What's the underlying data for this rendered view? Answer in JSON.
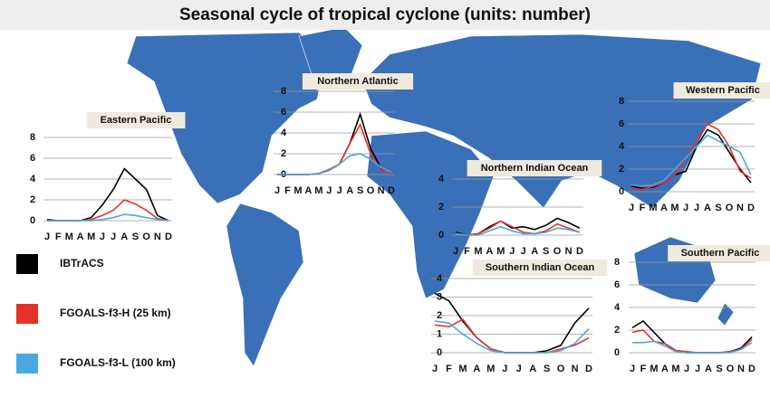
{
  "title": "Seasonal cycle of tropical cyclone (units: number)",
  "chart_data": [
    {
      "type": "line",
      "title": "Eastern Pacific",
      "categories": [
        "J",
        "F",
        "M",
        "A",
        "M",
        "J",
        "J",
        "A",
        "S",
        "O",
        "N",
        "D"
      ],
      "ylim": [
        0,
        8
      ],
      "yticks": [
        0,
        2,
        4,
        6,
        8
      ],
      "grid": true,
      "series": [
        {
          "name": "IBTrACS",
          "color": "#000000",
          "values": [
            0.1,
            0,
            0,
            0,
            0.3,
            1.5,
            3,
            5,
            4,
            3,
            0.5,
            0
          ]
        },
        {
          "name": "FGOALS-f3-H (25 km)",
          "color": "#e8302a",
          "values": [
            0,
            0,
            0,
            0,
            0.1,
            0.5,
            1,
            2,
            1.6,
            1,
            0.2,
            0
          ]
        },
        {
          "name": "FGOALS-f3-L (100 km)",
          "color": "#4aa8e0",
          "values": [
            0,
            0,
            0,
            0,
            0,
            0.1,
            0.3,
            0.6,
            0.5,
            0.3,
            0.1,
            0
          ]
        }
      ]
    },
    {
      "type": "line",
      "title": "Northern Atlantic",
      "categories": [
        "J",
        "F",
        "M",
        "A",
        "M",
        "J",
        "J",
        "A",
        "S",
        "O",
        "N",
        "D"
      ],
      "ylim": [
        0,
        8
      ],
      "yticks": [
        0,
        2,
        4,
        6,
        8
      ],
      "grid": true,
      "series": [
        {
          "name": "IBTrACS",
          "color": "#000000",
          "values": [
            0,
            0,
            0,
            0,
            0.1,
            0.5,
            1,
            3,
            5.8,
            2.5,
            0.6,
            0.1
          ]
        },
        {
          "name": "FGOALS-f3-H (25 km)",
          "color": "#e8302a",
          "values": [
            0,
            0,
            0,
            0,
            0.1,
            0.4,
            1,
            3,
            4.8,
            2,
            0.5,
            0.1
          ]
        },
        {
          "name": "FGOALS-f3-L (100 km)",
          "color": "#4aa8e0",
          "values": [
            0,
            0,
            0,
            0,
            0.1,
            0.5,
            1,
            1.8,
            2,
            1.5,
            0.7,
            0.2
          ]
        }
      ]
    },
    {
      "type": "line",
      "title": "Western Pacific",
      "categories": [
        "J",
        "F",
        "M",
        "A",
        "M",
        "J",
        "J",
        "A",
        "S",
        "O",
        "N",
        "D"
      ],
      "ylim": [
        0,
        8
      ],
      "yticks": [
        0,
        2,
        4,
        6,
        8
      ],
      "grid": true,
      "series": [
        {
          "name": "IBTrACS",
          "color": "#000000",
          "values": [
            0.5,
            0.3,
            0.4,
            0.8,
            1.5,
            1.8,
            4,
            5.5,
            5,
            3.5,
            2,
            0.8
          ]
        },
        {
          "name": "FGOALS-f3-H (25 km)",
          "color": "#e8302a",
          "values": [
            0.3,
            0.2,
            0.5,
            0.8,
            1.5,
            3,
            4.5,
            6,
            5.5,
            4,
            1.8,
            1.2
          ]
        },
        {
          "name": "FGOALS-f3-L (100 km)",
          "color": "#4aa8e0",
          "values": [
            0.6,
            0.5,
            0.6,
            1,
            2,
            3,
            4,
            5,
            4.5,
            4,
            3.5,
            1.5
          ]
        }
      ]
    },
    {
      "type": "line",
      "title": "Northern Indian Ocean",
      "categories": [
        "J",
        "F",
        "M",
        "A",
        "M",
        "J",
        "J",
        "A",
        "S",
        "O",
        "N",
        "D"
      ],
      "ylim": [
        0,
        4
      ],
      "yticks": [
        0,
        2,
        4
      ],
      "grid": true,
      "series": [
        {
          "name": "IBTrACS",
          "color": "#000000",
          "values": [
            0.2,
            0,
            0.1,
            0.6,
            1,
            0.5,
            0.6,
            0.4,
            0.7,
            1.2,
            0.9,
            0.5
          ]
        },
        {
          "name": "FGOALS-f3-H (25 km)",
          "color": "#e8302a",
          "values": [
            0.1,
            0,
            0.1,
            0.5,
            1,
            0.6,
            0.2,
            0.1,
            0.3,
            0.8,
            0.5,
            0.2
          ]
        },
        {
          "name": "FGOALS-f3-L (100 km)",
          "color": "#4aa8e0",
          "values": [
            0.1,
            0,
            0,
            0.3,
            0.6,
            0.3,
            0.1,
            0.1,
            0.2,
            0.5,
            0.4,
            0.2
          ]
        }
      ]
    },
    {
      "type": "line",
      "title": "Southern Indian Ocean",
      "categories": [
        "J",
        "F",
        "M",
        "A",
        "M",
        "J",
        "J",
        "A",
        "S",
        "O",
        "N",
        "D"
      ],
      "ylim": [
        0,
        4
      ],
      "yticks": [
        0,
        1,
        2,
        3,
        4
      ],
      "grid": true,
      "series": [
        {
          "name": "IBTrACS",
          "color": "#000000",
          "values": [
            3.2,
            2.8,
            1.7,
            0.8,
            0.2,
            0,
            0,
            0,
            0.1,
            0.4,
            1.6,
            2.4
          ]
        },
        {
          "name": "FGOALS-f3-H (25 km)",
          "color": "#e8302a",
          "values": [
            1.5,
            1.4,
            1.8,
            0.8,
            0.2,
            0,
            0,
            0,
            0,
            0.2,
            0.4,
            0.8
          ]
        },
        {
          "name": "FGOALS-f3-L (100 km)",
          "color": "#4aa8e0",
          "values": [
            1.7,
            1.6,
            1,
            0.5,
            0.1,
            0,
            0,
            0,
            0,
            0.1,
            0.5,
            1.3
          ]
        }
      ]
    },
    {
      "type": "line",
      "title": "Southern Pacific",
      "categories": [
        "J",
        "F",
        "M",
        "A",
        "M",
        "J",
        "J",
        "A",
        "S",
        "O",
        "N",
        "D"
      ],
      "ylim": [
        0,
        8
      ],
      "yticks": [
        0,
        2,
        4,
        6,
        8
      ],
      "grid": true,
      "series": [
        {
          "name": "IBTrACS",
          "color": "#000000",
          "values": [
            2.2,
            2.8,
            1.8,
            0.8,
            0.2,
            0,
            0,
            0,
            0,
            0.1,
            0.4,
            1.4
          ]
        },
        {
          "name": "FGOALS-f3-H (25 km)",
          "color": "#e8302a",
          "values": [
            1.8,
            2,
            1,
            0.8,
            0.2,
            0.1,
            0,
            0,
            0,
            0.1,
            0.3,
            1.2
          ]
        },
        {
          "name": "FGOALS-f3-L (100 km)",
          "color": "#4aa8e0",
          "values": [
            0.9,
            0.9,
            1,
            0.6,
            0.1,
            0,
            0,
            0,
            0,
            0,
            0.3,
            0.9
          ]
        }
      ]
    }
  ]
}
